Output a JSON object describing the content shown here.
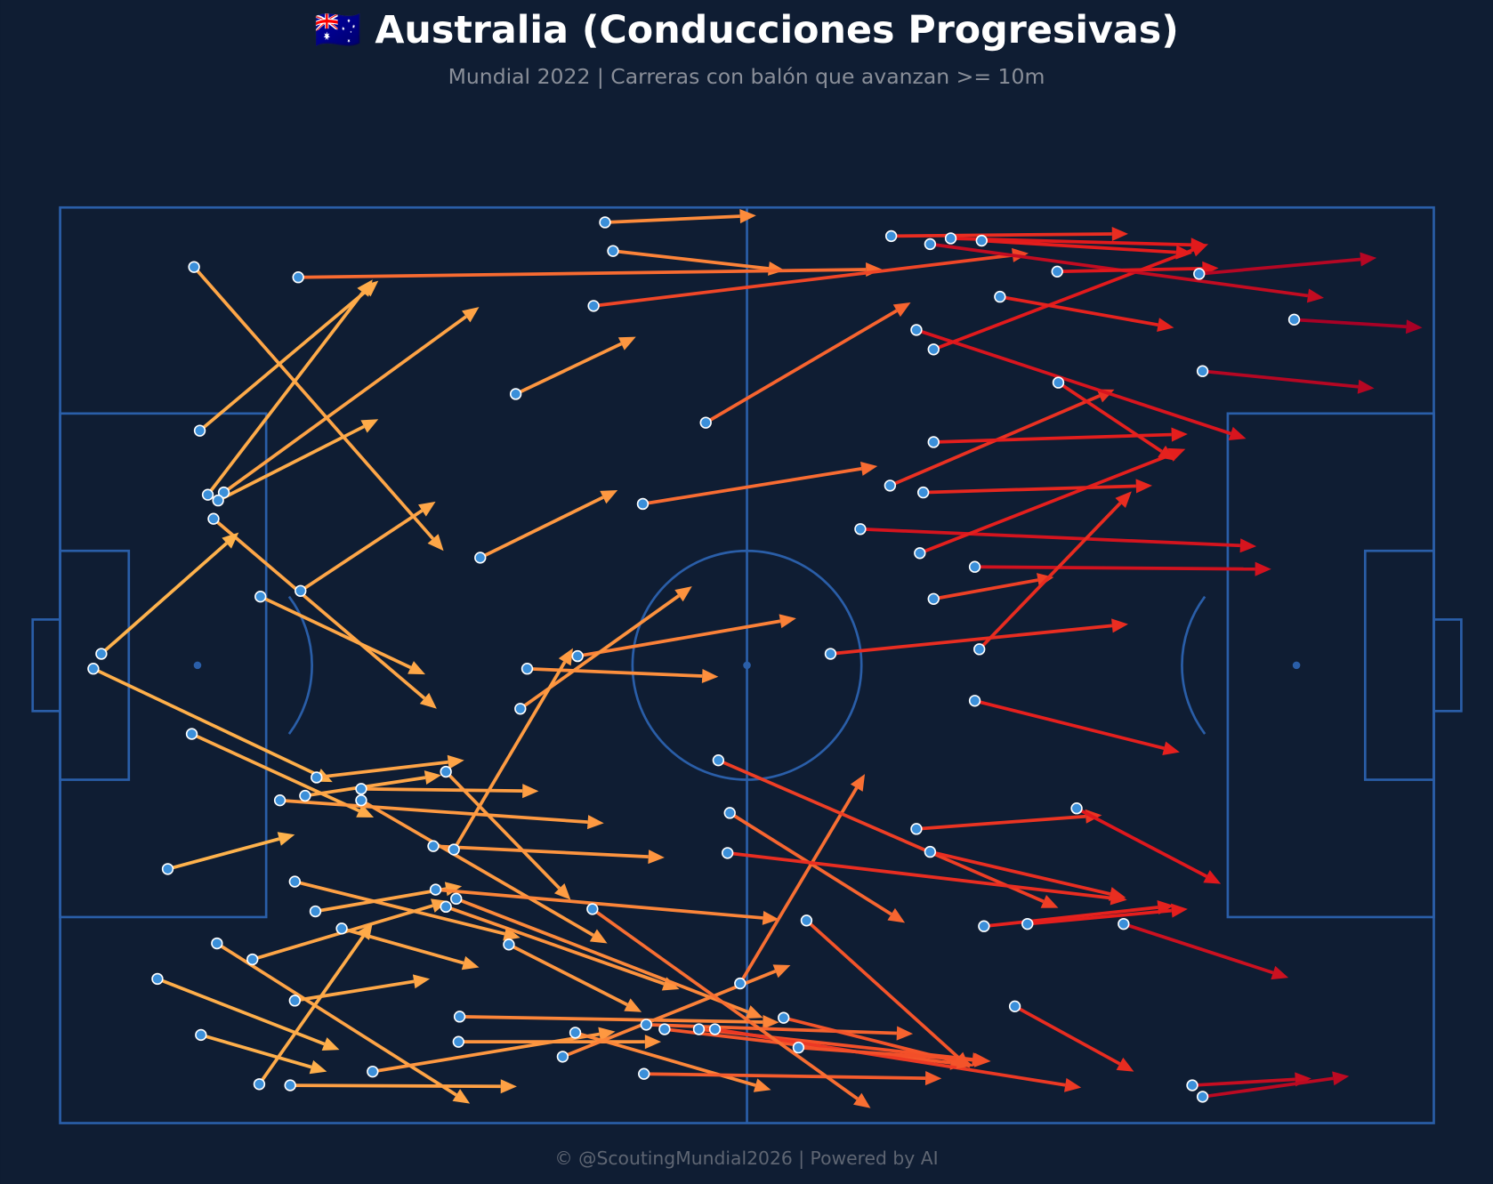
{
  "chart_data": {
    "type": "pitch",
    "title": "🇦🇺 Australia (Conducciones Progresivas)",
    "subtitle": "Mundial 2022 | Carreras con balón que avanzan >= 10m",
    "footer": "© @ScoutingMundial2026 | Powered by AI",
    "xlim": [
      0,
      120
    ],
    "ylim": [
      0,
      80
    ],
    "background": "#0f1d33",
    "line_color": "#2a5ea8",
    "dot_color": "#3b8fd9",
    "colormap": [
      "#feb24c",
      "#feb24c",
      "#fea044",
      "#fd8d3c",
      "#f4532a",
      "#e31a1c",
      "#a50026"
    ],
    "x": [
      47.6,
      48.3,
      20.8,
      46.6,
      11.7,
      12.2,
      12.9,
      14.3,
      13.8,
      39.8,
      56.4,
      13.4,
      21.0,
      36.7,
      50.9,
      17.5,
      3.6,
      2.9,
      11.5,
      22.4,
      21.4,
      26.3,
      19.2,
      26.3,
      33.7,
      40.8,
      45.2,
      40.2,
      34.4,
      32.6,
      9.4,
      20.5,
      22.3,
      32.8,
      33.7,
      34.6,
      24.6,
      16.8,
      13.7,
      8.5,
      20.5,
      39.2,
      12.3,
      17.4,
      20.1,
      27.3,
      34.8,
      34.9,
      43.9,
      45.0,
      51.0,
      51.2,
      52.8,
      55.8,
      57.2,
      59.4,
      63.2,
      64.5,
      46.5,
      65.2,
      57.5,
      58.5,
      58.3,
      67.3,
      69.9,
      72.5,
      75.4,
      75.1,
      76.3,
      79.9,
      80.3,
      79.9,
      76.3,
      87.2,
      74.8,
      76.3,
      82.1,
      72.6,
      76.0,
      77.8,
      80.5,
      87.1,
      99.5,
      107.8,
      99.8,
      74.8,
      76.0,
      88.8,
      80.7,
      84.5,
      92.9,
      83.4,
      98.9,
      99.8
    ],
    "y": [
      1.3,
      3.8,
      6.1,
      8.6,
      5.2,
      19.5,
      25.1,
      24.9,
      25.6,
      16.3,
      18.8,
      27.2,
      33.5,
      30.6,
      25.9,
      34.0,
      39.0,
      40.3,
      46.0,
      49.8,
      51.4,
      50.8,
      51.8,
      51.8,
      49.3,
      40.3,
      39.2,
      43.8,
      56.1,
      55.8,
      57.8,
      58.9,
      61.5,
      59.6,
      61.1,
      60.4,
      63.0,
      65.7,
      64.3,
      67.4,
      69.3,
      64.4,
      72.3,
      76.6,
      76.7,
      75.5,
      72.9,
      70.7,
      74.2,
      72.1,
      75.7,
      71.4,
      71.8,
      71.8,
      71.8,
      67.8,
      70.8,
      73.4,
      61.3,
      62.3,
      48.3,
      52.9,
      56.4,
      39.0,
      28.1,
      24.3,
      24.9,
      30.2,
      34.2,
      31.4,
      38.6,
      43.1,
      20.5,
      15.3,
      10.7,
      12.4,
      7.8,
      2.5,
      3.2,
      2.7,
      2.9,
      5.6,
      5.8,
      9.8,
      14.3,
      54.3,
      56.3,
      52.5,
      62.8,
      62.6,
      62.6,
      69.8,
      76.7,
      77.7
    ],
    "end_x": [
      60.8,
      63.3,
      71.8,
      84.6,
      33.5,
      27.8,
      27.3,
      36.6,
      27.8,
      50.3,
      74.3,
      32.9,
      32.8,
      48.7,
      71.4,
      31.9,
      15.6,
      23.8,
      27.4,
      35.3,
      33.3,
      41.8,
      47.5,
      47.8,
      44.6,
      57.5,
      64.3,
      55.2,
      44.8,
      52.8,
      20.5,
      40.2,
      35.1,
      62.8,
      54.1,
      61.4,
      36.6,
      33.9,
      35.8,
      24.4,
      32.3,
      50.8,
      23.3,
      27.3,
      39.9,
      48.5,
      52.5,
      62.8,
      63.8,
      62.1,
      77.0,
      74.5,
      79.2,
      81.1,
      89.2,
      70.3,
      79.8,
      81.3,
      70.8,
      79.5,
      87.2,
      73.8,
      93.2,
      93.3,
      104.5,
      92.1,
      95.4,
      98.3,
      86.8,
      105.8,
      93.6,
      97.8,
      98.5,
      97.4,
      103.6,
      100.3,
      97.3,
      93.3,
      110.4,
      100.2,
      98.9,
      101.2,
      115.0,
      119.0,
      114.8,
      91.0,
      93.1,
      101.4,
      97.3,
      98.5,
      107.3,
      93.8,
      109.3,
      112.6
    ],
    "end_y": [
      0.7,
      5.5,
      5.4,
      4.0,
      30.0,
      6.4,
      6.3,
      8.7,
      18.5,
      11.3,
      8.3,
      43.8,
      25.7,
      24.7,
      22.6,
      40.8,
      28.4,
      50.2,
      53.3,
      48.3,
      49.6,
      51.0,
      53.8,
      64.3,
      60.5,
      41.0,
      35.9,
      33.1,
      38.5,
      56.8,
      54.8,
      63.8,
      59.3,
      62.2,
      68.3,
      70.8,
      66.4,
      60.6,
      78.3,
      73.6,
      67.4,
      70.3,
      75.5,
      62.5,
      76.8,
      72.0,
      72.9,
      71.2,
      66.2,
      77.1,
      76.1,
      72.2,
      74.9,
      74.6,
      76.9,
      49.5,
      75.0,
      74.6,
      78.7,
      75.2,
      61.2,
      62.5,
      60.5,
      36.4,
      29.6,
      15.9,
      24.3,
      21.1,
      32.3,
      31.6,
      24.8,
      47.6,
      19.8,
      22.1,
      20.2,
      3.2,
      10.5,
      2.3,
      7.9,
      3.3,
      4.0,
      5.3,
      4.4,
      10.5,
      15.8,
      53.1,
      60.3,
      59.1,
      61.0,
      61.3,
      67.3,
      75.5,
      76.1,
      75.9
    ]
  }
}
